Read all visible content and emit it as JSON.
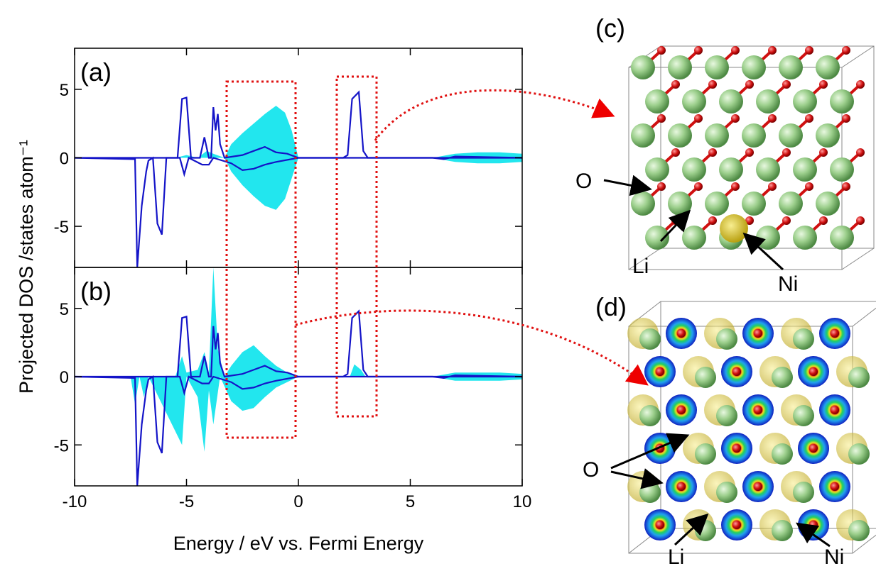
{
  "chart_data": [
    {
      "type": "line",
      "label": "(a)",
      "ylabel": "Projected DOS /states atom⁻¹",
      "xlim": [
        -10,
        10
      ],
      "ylim": [
        -8,
        8
      ],
      "yticks": [
        -5,
        0,
        5
      ],
      "series": [
        {
          "style": "area",
          "color": "#22e6ee",
          "x": [
            -5.5,
            -5,
            -4.5,
            -4.1,
            -3.8,
            -3.3,
            -3,
            -2.5,
            -2,
            -1.5,
            -1,
            -0.6,
            -0.3,
            0,
            6,
            7,
            8,
            9,
            10
          ],
          "values": [
            0,
            0.2,
            0,
            0.5,
            0.3,
            0,
            1,
            1.8,
            2.5,
            3.2,
            3.8,
            3.3,
            2,
            0,
            0,
            0.3,
            0.4,
            0.4,
            0.3
          ]
        },
        {
          "style": "area",
          "color": "#22e6ee",
          "x": [
            -3.3,
            -3,
            -2.5,
            -2,
            -1.5,
            -1,
            -0.6,
            -0.3,
            0,
            6,
            7,
            8,
            9,
            10
          ],
          "values": [
            0,
            -1,
            -2,
            -2.8,
            -3.5,
            -3.8,
            -3,
            -1.5,
            0,
            0,
            -0.3,
            -0.4,
            -0.4,
            -0.3
          ]
        },
        {
          "style": "line",
          "color": "#1414c8",
          "x": [
            -10,
            -5.4,
            -5.2,
            -5.0,
            -4.8,
            -4.4,
            -4.2,
            -4.0,
            -3.9,
            -3.8,
            -3.7,
            -3.6,
            -3.5,
            -3.3,
            -2.5,
            -2,
            -1.5,
            -1,
            -0.5,
            0,
            2,
            2.2,
            2.4,
            2.7,
            2.9,
            3.1,
            6,
            6.5,
            7,
            10
          ],
          "values": [
            0,
            0,
            4.3,
            4.4,
            0,
            0,
            1.5,
            0,
            0,
            3.7,
            2,
            3.2,
            1,
            0,
            0.2,
            0.5,
            0.8,
            0.4,
            0.3,
            0,
            0,
            0.2,
            4.3,
            4.8,
            0.5,
            0,
            0,
            -0.1,
            0.1,
            0
          ]
        },
        {
          "style": "line",
          "color": "#1414c8",
          "x": [
            -10,
            -7.3,
            -7.2,
            -7.0,
            -6.8,
            -6.7,
            -6.5,
            -6.3,
            -6.1,
            -5.9,
            -5.3,
            -5.1,
            -4.9,
            -4.3,
            -4.0,
            -3.8,
            -3,
            -2.5,
            -2,
            -1.5,
            -1,
            0,
            10
          ],
          "values": [
            0,
            -0.1,
            -8,
            -3.5,
            -1,
            -0.2,
            0,
            -4.8,
            -5.6,
            0,
            0,
            -1.2,
            0,
            -0.5,
            -0.5,
            0,
            -0.4,
            -0.9,
            -0.8,
            -0.5,
            -0.3,
            0,
            0
          ]
        }
      ]
    },
    {
      "type": "line",
      "label": "(b)",
      "xlabel": "Energy / eV vs. Fermi Energy",
      "xlim": [
        -10,
        10
      ],
      "ylim": [
        -8,
        8
      ],
      "xticks": [
        -10,
        -5,
        0,
        5,
        10
      ],
      "yticks": [
        -5,
        0,
        5
      ],
      "series": [
        {
          "style": "area",
          "color": "#22e6ee",
          "x": [
            -5.5,
            -5.2,
            -5,
            -4.5,
            -4.2,
            -4,
            -3.8,
            -3.6,
            -3.3,
            -3,
            -2.5,
            -2,
            -1.5,
            -1,
            -0.5,
            0,
            2.3,
            2.5,
            2.8,
            3,
            6,
            7,
            9,
            10
          ],
          "values": [
            0,
            1.5,
            0.3,
            0.5,
            1.8,
            0.3,
            8,
            2,
            0,
            0.8,
            1.8,
            2.3,
            1.5,
            0.8,
            0.3,
            0,
            0,
            0.9,
            0.5,
            0,
            0,
            0.3,
            0.3,
            0.2
          ]
        },
        {
          "style": "area",
          "color": "#22e6ee",
          "x": [
            -7.5,
            -7.3,
            -7.1,
            -6.9,
            -6.7,
            -5.2,
            -5,
            -4.5,
            -4.2,
            -4,
            -3.8,
            -3.5,
            -3,
            -2.5,
            -2,
            -1.5,
            -1,
            0,
            6,
            7,
            9,
            10
          ],
          "values": [
            0,
            -2,
            0,
            -1.5,
            0,
            -5,
            0,
            -1.5,
            -5.5,
            -1,
            -3.5,
            0,
            -1.8,
            -2.5,
            -2.3,
            -1.5,
            -0.8,
            0,
            0,
            -0.3,
            -0.3,
            -0.2
          ]
        },
        {
          "style": "line",
          "color": "#1414c8",
          "x": [
            -10,
            -5.4,
            -5.2,
            -5.0,
            -4.8,
            -4.4,
            -4.2,
            -4.0,
            -3.9,
            -3.8,
            -3.7,
            -3.6,
            -3.5,
            -3.3,
            -2.5,
            -2,
            -1.5,
            -1,
            -0.5,
            0,
            2,
            2.2,
            2.4,
            2.7,
            2.9,
            3.1,
            6,
            6.5,
            7,
            10
          ],
          "values": [
            0,
            0,
            4.3,
            4.4,
            0,
            0,
            1.5,
            0,
            0,
            3.7,
            2,
            3.2,
            1,
            0,
            0.2,
            0.5,
            0.8,
            0.4,
            0.3,
            0,
            0,
            0.2,
            4.3,
            4.8,
            0.5,
            0,
            0,
            -0.1,
            0.1,
            0
          ]
        },
        {
          "style": "line",
          "color": "#1414c8",
          "x": [
            -10,
            -7.3,
            -7.2,
            -7.0,
            -6.8,
            -6.7,
            -6.5,
            -6.3,
            -6.1,
            -5.9,
            -5.3,
            -5.1,
            -4.9,
            -4.3,
            -4.0,
            -3.8,
            -3,
            -2.5,
            -2,
            -1.5,
            -1,
            0,
            10
          ],
          "values": [
            0,
            -0.1,
            -8,
            -3.5,
            -1,
            -0.2,
            0,
            -4.8,
            -5.6,
            0,
            0,
            -1.2,
            0,
            -0.5,
            -0.5,
            0,
            -0.4,
            -0.9,
            -0.8,
            -0.5,
            -0.3,
            0,
            0
          ]
        }
      ]
    }
  ],
  "structures": [
    {
      "label": "(c)",
      "annotations": [
        "O",
        "Li",
        "Ni"
      ]
    },
    {
      "label": "(d)",
      "annotations": [
        "O",
        "Li",
        "Ni"
      ]
    }
  ]
}
